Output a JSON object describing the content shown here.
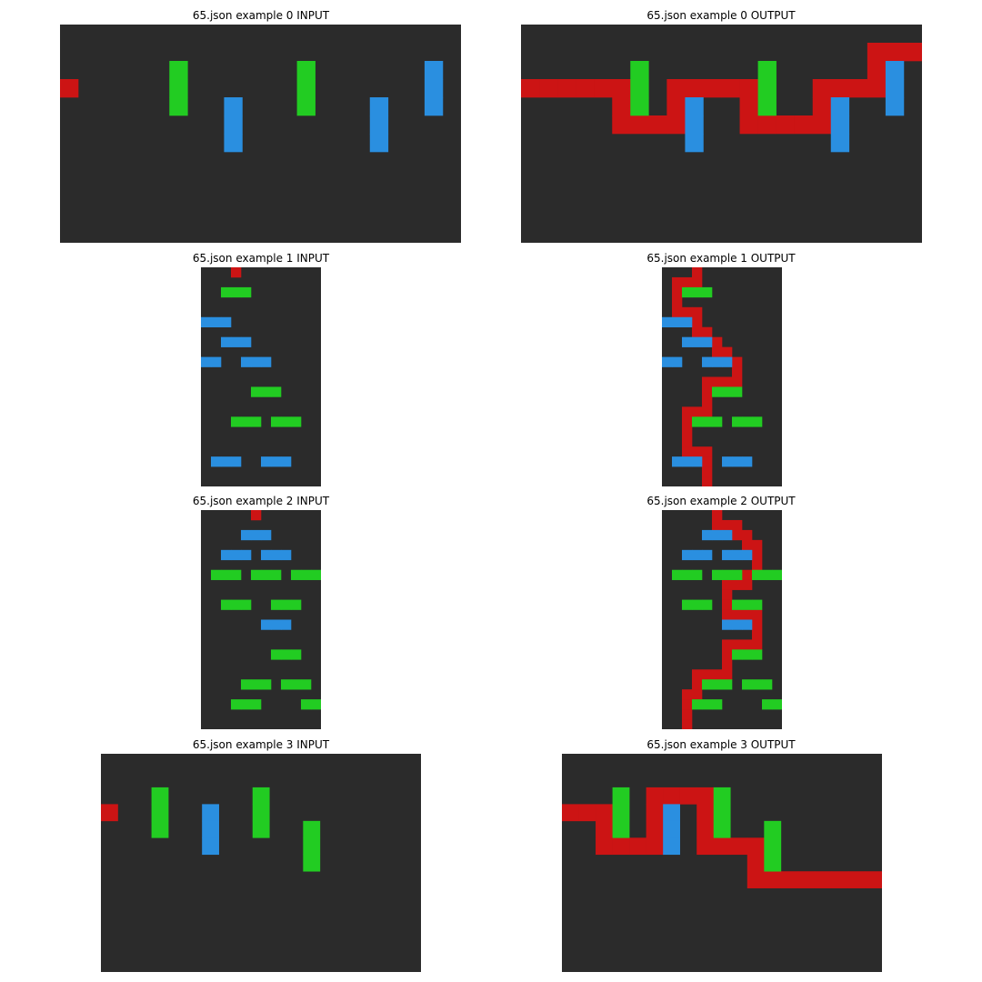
{
  "colors": {
    "background": "#2b2b2b",
    "red": "#cc1414",
    "green": "#22cc22",
    "blue": "#2a8fe0"
  },
  "examples": [
    {
      "input_title": "65.json example 0 INPUT",
      "output_title": "65.json example 0 OUTPUT",
      "width": 22,
      "height": 12,
      "input": {
        "red": [
          [
            3,
            0
          ]
        ],
        "green": [
          [
            2,
            6
          ],
          [
            3,
            6
          ],
          [
            4,
            6
          ],
          [
            2,
            13
          ],
          [
            3,
            13
          ],
          [
            4,
            13
          ]
        ],
        "blue": [
          [
            2,
            20
          ],
          [
            3,
            20
          ],
          [
            4,
            20
          ],
          [
            4,
            9
          ],
          [
            5,
            9
          ],
          [
            6,
            9
          ],
          [
            4,
            17
          ],
          [
            5,
            17
          ],
          [
            6,
            17
          ]
        ]
      },
      "output": {
        "red": [
          [
            3,
            0
          ],
          [
            3,
            1
          ],
          [
            3,
            2
          ],
          [
            3,
            3
          ],
          [
            3,
            4
          ],
          [
            3,
            5
          ],
          [
            4,
            5
          ],
          [
            5,
            5
          ],
          [
            5,
            6
          ],
          [
            5,
            7
          ],
          [
            5,
            8
          ],
          [
            4,
            8
          ],
          [
            3,
            8
          ],
          [
            3,
            9
          ],
          [
            3,
            10
          ],
          [
            3,
            11
          ],
          [
            3,
            12
          ],
          [
            4,
            12
          ],
          [
            5,
            12
          ],
          [
            5,
            13
          ],
          [
            5,
            14
          ],
          [
            5,
            15
          ],
          [
            5,
            16
          ],
          [
            4,
            16
          ],
          [
            3,
            16
          ],
          [
            3,
            17
          ],
          [
            3,
            18
          ],
          [
            3,
            19
          ],
          [
            2,
            19
          ],
          [
            1,
            19
          ],
          [
            1,
            20
          ],
          [
            1,
            21
          ]
        ],
        "green": [
          [
            2,
            6
          ],
          [
            3,
            6
          ],
          [
            4,
            6
          ],
          [
            2,
            13
          ],
          [
            3,
            13
          ],
          [
            4,
            13
          ]
        ],
        "blue": [
          [
            2,
            20
          ],
          [
            3,
            20
          ],
          [
            4,
            20
          ],
          [
            4,
            9
          ],
          [
            5,
            9
          ],
          [
            6,
            9
          ],
          [
            4,
            17
          ],
          [
            5,
            17
          ],
          [
            6,
            17
          ]
        ]
      }
    },
    {
      "input_title": "65.json example 1 INPUT",
      "output_title": "65.json example 1 OUTPUT",
      "width": 12,
      "height": 22,
      "input": {
        "red": [
          [
            0,
            3
          ]
        ],
        "green": [
          [
            2,
            2
          ],
          [
            2,
            3
          ],
          [
            2,
            4
          ],
          [
            12,
            5
          ],
          [
            12,
            6
          ],
          [
            12,
            7
          ],
          [
            15,
            3
          ],
          [
            15,
            4
          ],
          [
            15,
            5
          ],
          [
            15,
            7
          ],
          [
            15,
            8
          ],
          [
            15,
            9
          ]
        ],
        "blue": [
          [
            5,
            0
          ],
          [
            5,
            1
          ],
          [
            5,
            2
          ],
          [
            7,
            2
          ],
          [
            7,
            3
          ],
          [
            7,
            4
          ],
          [
            9,
            0
          ],
          [
            9,
            1
          ],
          [
            9,
            4
          ],
          [
            9,
            5
          ],
          [
            9,
            6
          ],
          [
            19,
            1
          ],
          [
            19,
            2
          ],
          [
            19,
            3
          ],
          [
            19,
            6
          ],
          [
            19,
            7
          ],
          [
            19,
            8
          ]
        ]
      },
      "output": {
        "red": [
          [
            0,
            3
          ],
          [
            1,
            1
          ],
          [
            1,
            2
          ],
          [
            1,
            3
          ],
          [
            2,
            1
          ],
          [
            3,
            1
          ],
          [
            4,
            1
          ],
          [
            4,
            2
          ],
          [
            4,
            3
          ],
          [
            5,
            3
          ],
          [
            6,
            3
          ],
          [
            6,
            4
          ],
          [
            7,
            5
          ],
          [
            8,
            5
          ],
          [
            8,
            6
          ],
          [
            9,
            7
          ],
          [
            10,
            7
          ],
          [
            11,
            4
          ],
          [
            11,
            5
          ],
          [
            11,
            6
          ],
          [
            11,
            7
          ],
          [
            12,
            4
          ],
          [
            13,
            4
          ],
          [
            14,
            2
          ],
          [
            14,
            3
          ],
          [
            14,
            4
          ],
          [
            15,
            2
          ],
          [
            16,
            2
          ],
          [
            17,
            2
          ],
          [
            18,
            2
          ],
          [
            18,
            3
          ],
          [
            18,
            4
          ],
          [
            19,
            4
          ],
          [
            20,
            4
          ],
          [
            21,
            4
          ]
        ],
        "green": [
          [
            2,
            2
          ],
          [
            2,
            3
          ],
          [
            2,
            4
          ],
          [
            12,
            5
          ],
          [
            12,
            6
          ],
          [
            12,
            7
          ],
          [
            15,
            3
          ],
          [
            15,
            4
          ],
          [
            15,
            5
          ],
          [
            15,
            7
          ],
          [
            15,
            8
          ],
          [
            15,
            9
          ]
        ],
        "blue": [
          [
            5,
            0
          ],
          [
            5,
            1
          ],
          [
            5,
            2
          ],
          [
            7,
            2
          ],
          [
            7,
            3
          ],
          [
            7,
            4
          ],
          [
            9,
            0
          ],
          [
            9,
            1
          ],
          [
            9,
            4
          ],
          [
            9,
            5
          ],
          [
            9,
            6
          ],
          [
            19,
            1
          ],
          [
            19,
            2
          ],
          [
            19,
            3
          ],
          [
            19,
            6
          ],
          [
            19,
            7
          ],
          [
            19,
            8
          ]
        ]
      }
    },
    {
      "input_title": "65.json example 2 INPUT",
      "output_title": "65.json example 2 OUTPUT",
      "width": 12,
      "height": 22,
      "input": {
        "red": [
          [
            0,
            5
          ]
        ],
        "green": [
          [
            6,
            1
          ],
          [
            6,
            2
          ],
          [
            6,
            3
          ],
          [
            6,
            5
          ],
          [
            6,
            6
          ],
          [
            6,
            7
          ],
          [
            6,
            9
          ],
          [
            6,
            10
          ],
          [
            6,
            11
          ],
          [
            9,
            2
          ],
          [
            9,
            3
          ],
          [
            9,
            4
          ],
          [
            9,
            7
          ],
          [
            9,
            8
          ],
          [
            9,
            9
          ],
          [
            14,
            7
          ],
          [
            14,
            8
          ],
          [
            14,
            9
          ],
          [
            17,
            4
          ],
          [
            17,
            5
          ],
          [
            17,
            6
          ],
          [
            17,
            8
          ],
          [
            17,
            9
          ],
          [
            17,
            10
          ],
          [
            19,
            3
          ],
          [
            19,
            4
          ],
          [
            19,
            5
          ],
          [
            19,
            10
          ],
          [
            19,
            11
          ]
        ],
        "blue": [
          [
            2,
            4
          ],
          [
            2,
            5
          ],
          [
            2,
            6
          ],
          [
            4,
            2
          ],
          [
            4,
            3
          ],
          [
            4,
            4
          ],
          [
            4,
            6
          ],
          [
            4,
            7
          ],
          [
            4,
            8
          ],
          [
            11,
            6
          ],
          [
            11,
            7
          ],
          [
            11,
            8
          ]
        ]
      },
      "output": {
        "red": [
          [
            0,
            5
          ],
          [
            1,
            5
          ],
          [
            1,
            6
          ],
          [
            1,
            7
          ],
          [
            2,
            7
          ],
          [
            2,
            8
          ],
          [
            3,
            8
          ],
          [
            3,
            9
          ],
          [
            4,
            9
          ],
          [
            5,
            9
          ],
          [
            6,
            8
          ],
          [
            7,
            6
          ],
          [
            7,
            7
          ],
          [
            7,
            8
          ],
          [
            8,
            6
          ],
          [
            9,
            6
          ],
          [
            10,
            6
          ],
          [
            10,
            7
          ],
          [
            10,
            8
          ],
          [
            10,
            9
          ],
          [
            11,
            9
          ],
          [
            12,
            9
          ],
          [
            13,
            6
          ],
          [
            13,
            7
          ],
          [
            13,
            8
          ],
          [
            13,
            9
          ],
          [
            14,
            6
          ],
          [
            15,
            6
          ],
          [
            16,
            3
          ],
          [
            16,
            4
          ],
          [
            16,
            5
          ],
          [
            16,
            6
          ],
          [
            17,
            3
          ],
          [
            18,
            2
          ],
          [
            18,
            3
          ],
          [
            19,
            2
          ],
          [
            20,
            2
          ],
          [
            21,
            2
          ]
        ],
        "green": [
          [
            6,
            1
          ],
          [
            6,
            2
          ],
          [
            6,
            3
          ],
          [
            6,
            5
          ],
          [
            6,
            6
          ],
          [
            6,
            7
          ],
          [
            6,
            9
          ],
          [
            6,
            10
          ],
          [
            6,
            11
          ],
          [
            9,
            2
          ],
          [
            9,
            3
          ],
          [
            9,
            4
          ],
          [
            9,
            7
          ],
          [
            9,
            8
          ],
          [
            9,
            9
          ],
          [
            14,
            7
          ],
          [
            14,
            8
          ],
          [
            14,
            9
          ],
          [
            17,
            4
          ],
          [
            17,
            5
          ],
          [
            17,
            6
          ],
          [
            17,
            8
          ],
          [
            17,
            9
          ],
          [
            17,
            10
          ],
          [
            19,
            3
          ],
          [
            19,
            4
          ],
          [
            19,
            5
          ],
          [
            19,
            10
          ],
          [
            19,
            11
          ]
        ],
        "blue": [
          [
            2,
            4
          ],
          [
            2,
            5
          ],
          [
            2,
            6
          ],
          [
            4,
            2
          ],
          [
            4,
            3
          ],
          [
            4,
            4
          ],
          [
            4,
            6
          ],
          [
            4,
            7
          ],
          [
            4,
            8
          ],
          [
            11,
            6
          ],
          [
            11,
            7
          ],
          [
            11,
            8
          ]
        ]
      }
    },
    {
      "input_title": "65.json example 3 INPUT",
      "output_title": "65.json example 3 OUTPUT",
      "width": 19,
      "height": 13,
      "input": {
        "red": [
          [
            3,
            0
          ]
        ],
        "green": [
          [
            2,
            3
          ],
          [
            3,
            3
          ],
          [
            4,
            3
          ],
          [
            2,
            9
          ],
          [
            3,
            9
          ],
          [
            4,
            9
          ],
          [
            4,
            12
          ],
          [
            5,
            12
          ],
          [
            6,
            12
          ]
        ],
        "blue": [
          [
            3,
            6
          ],
          [
            4,
            6
          ],
          [
            5,
            6
          ]
        ]
      },
      "output": {
        "red": [
          [
            3,
            0
          ],
          [
            3,
            1
          ],
          [
            3,
            2
          ],
          [
            4,
            2
          ],
          [
            5,
            2
          ],
          [
            5,
            3
          ],
          [
            5,
            4
          ],
          [
            5,
            5
          ],
          [
            4,
            5
          ],
          [
            3,
            5
          ],
          [
            2,
            5
          ],
          [
            2,
            6
          ],
          [
            2,
            7
          ],
          [
            2,
            8
          ],
          [
            3,
            8
          ],
          [
            4,
            8
          ],
          [
            5,
            8
          ],
          [
            5,
            9
          ],
          [
            5,
            10
          ],
          [
            5,
            11
          ],
          [
            6,
            11
          ],
          [
            7,
            11
          ],
          [
            7,
            12
          ],
          [
            7,
            13
          ],
          [
            7,
            14
          ],
          [
            7,
            15
          ],
          [
            7,
            16
          ],
          [
            7,
            17
          ],
          [
            7,
            18
          ]
        ],
        "green": [
          [
            2,
            3
          ],
          [
            3,
            3
          ],
          [
            4,
            3
          ],
          [
            2,
            9
          ],
          [
            3,
            9
          ],
          [
            4,
            9
          ],
          [
            4,
            12
          ],
          [
            5,
            12
          ],
          [
            6,
            12
          ]
        ],
        "blue": [
          [
            3,
            6
          ],
          [
            4,
            6
          ],
          [
            5,
            6
          ]
        ]
      }
    }
  ]
}
